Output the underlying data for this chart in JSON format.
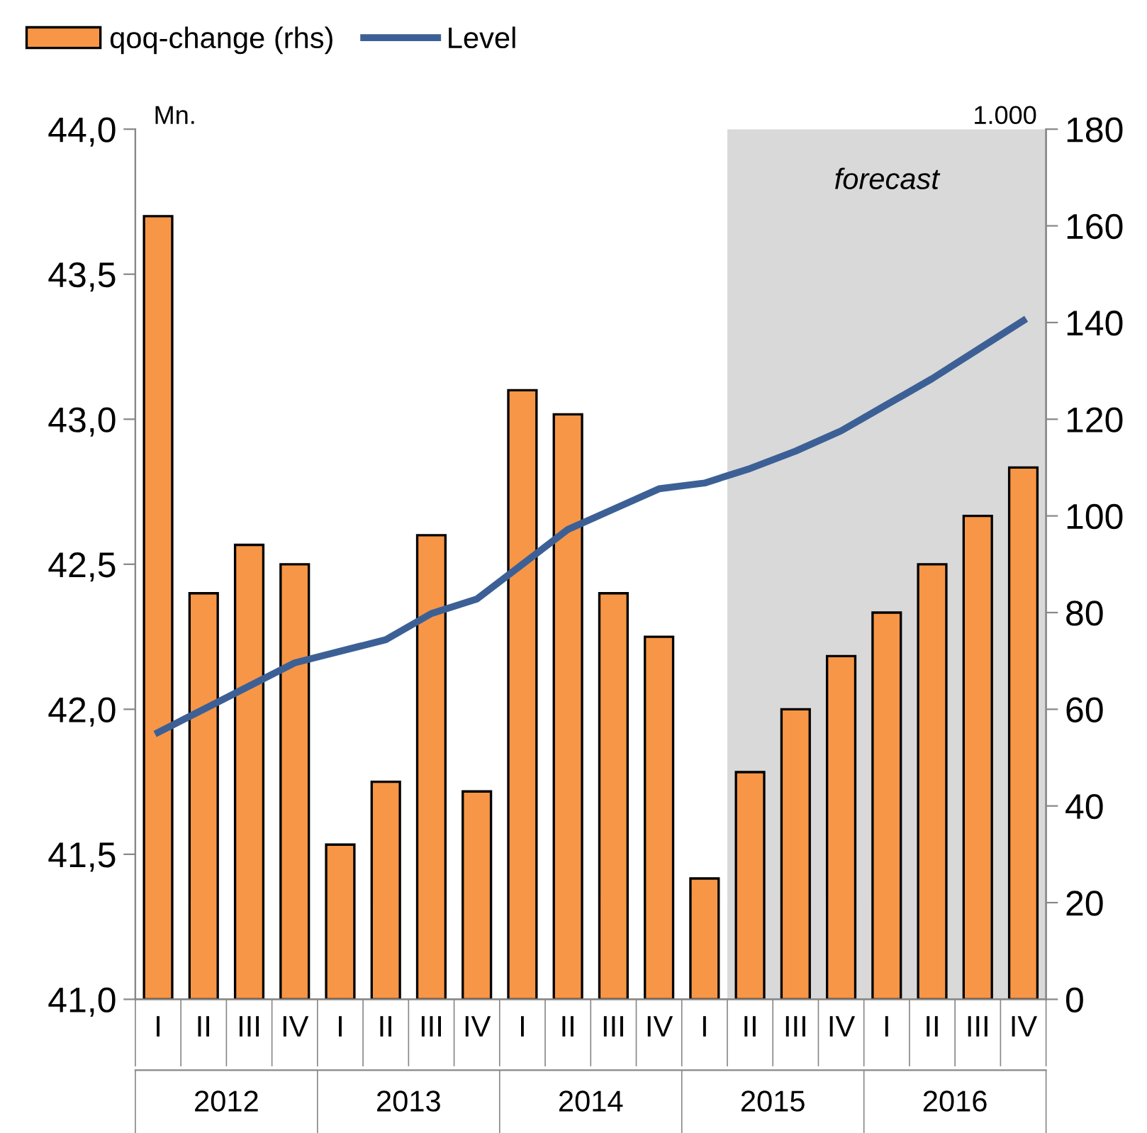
{
  "chart_data": {
    "type": "bar",
    "categories": [
      "I",
      "II",
      "III",
      "IV",
      "I",
      "II",
      "III",
      "IV",
      "I",
      "II",
      "III",
      "IV",
      "I",
      "II",
      "III",
      "IV",
      "I",
      "II",
      "III",
      "IV"
    ],
    "series": [
      {
        "name": "qoq-change (rhs)",
        "axis": "y2",
        "color": "#f79646",
        "values": [
          162,
          84,
          94,
          90,
          32,
          45,
          96,
          43,
          126,
          121,
          84,
          75,
          25,
          47,
          60,
          71,
          80,
          90,
          100,
          110
        ]
      },
      {
        "name": "Level",
        "type": "line",
        "axis": "y",
        "color": "#3c6096",
        "values": [
          41.92,
          42.0,
          42.08,
          42.16,
          42.2,
          42.24,
          42.33,
          42.38,
          42.5,
          42.62,
          42.69,
          42.76,
          42.78,
          42.83,
          42.89,
          42.96,
          43.05,
          43.14,
          43.24,
          43.34
        ]
      }
    ],
    "ylabel": "Mn.",
    "y2label": "1.000",
    "ylim": [
      41,
      44
    ],
    "yticks": [
      {
        "value": 41,
        "label": "41,0"
      },
      {
        "value": 41.5,
        "label": "41,5"
      },
      {
        "value": 42,
        "label": "42,0"
      },
      {
        "value": 42.5,
        "label": "42,5"
      },
      {
        "value": 43,
        "label": "43,0"
      },
      {
        "value": 43.5,
        "label": "43,5"
      },
      {
        "value": 44,
        "label": "44,0"
      }
    ],
    "y2lim": [
      0,
      180
    ],
    "y2ticks": [
      0,
      20,
      40,
      60,
      80,
      100,
      120,
      140,
      160,
      180
    ],
    "annotations": [
      "2012",
      "2013",
      "2014",
      "2015",
      "2016",
      "forecast"
    ],
    "legend": "top left",
    "grid": false,
    "marker": "none",
    "line_style": "solid"
  }
}
